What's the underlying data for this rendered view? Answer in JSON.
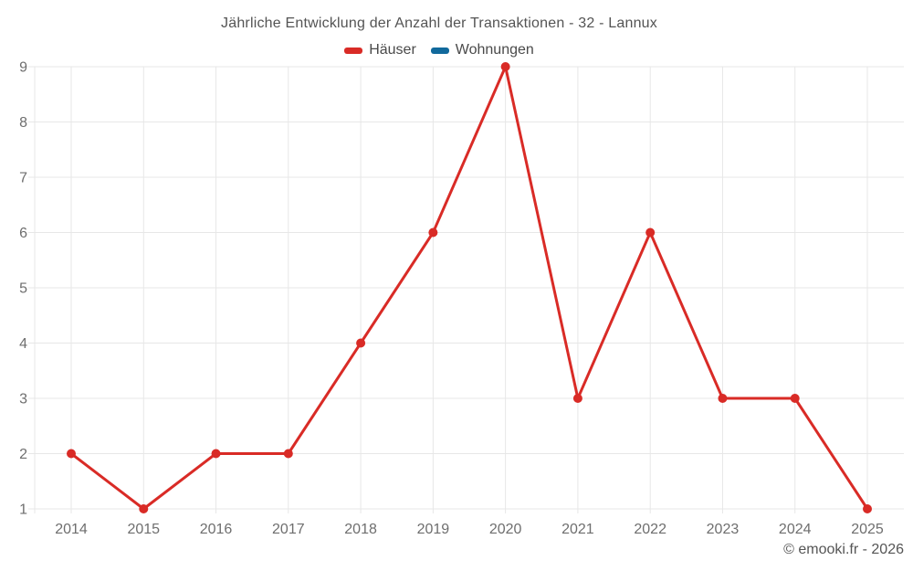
{
  "chart_data": {
    "type": "line",
    "title": "Jährliche Entwicklung der Anzahl der Transaktionen - 32 - Lannux",
    "categories": [
      "2014",
      "2015",
      "2016",
      "2017",
      "2018",
      "2019",
      "2020",
      "2021",
      "2022",
      "2023",
      "2024",
      "2025"
    ],
    "series": [
      {
        "name": "Häuser",
        "color": "#d92b26",
        "values": [
          2,
          1,
          2,
          2,
          4,
          6,
          9,
          3,
          6,
          3,
          3,
          1
        ]
      },
      {
        "name": "Wohnungen",
        "color": "#11699c",
        "values": []
      }
    ],
    "xlabel": "",
    "ylabel": "",
    "ylim": [
      1,
      9
    ],
    "y_tick_step": 1,
    "grid": true,
    "legend_position": "top",
    "colors": {
      "grid": "#e7e7e7",
      "axis_labels": "#6e6e6e",
      "title": "#545454"
    }
  },
  "footer": {
    "credit": "© emooki.fr - 2026"
  }
}
